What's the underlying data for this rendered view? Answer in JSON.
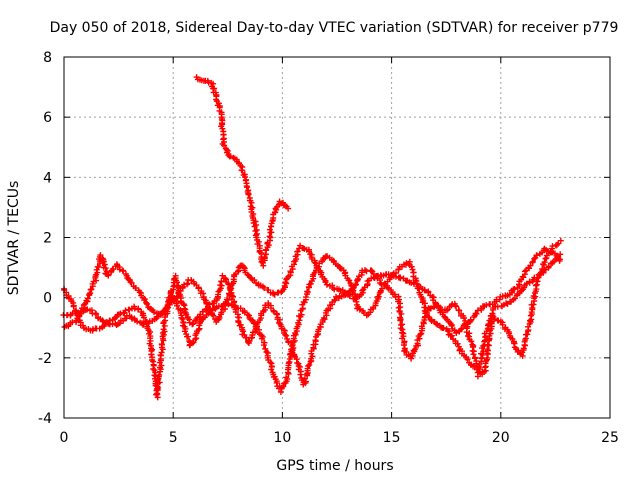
{
  "chart_data": {
    "type": "scatter",
    "title": "Day 050 of 2018, Sidereal Day-to-day VTEC variation (SDTVAR) for receiver p779",
    "xlabel": "GPS time / hours",
    "ylabel": "SDTVAR / TECUs",
    "xlim": [
      0,
      25
    ],
    "ylim": [
      -4,
      8
    ],
    "xticks": [
      "0",
      "5",
      "10",
      "15",
      "20",
      "25"
    ],
    "yticks": [
      "-4",
      "-2",
      "0",
      "2",
      "4",
      "6",
      "8"
    ],
    "grid": true,
    "marker": "plus",
    "series": [
      {
        "name": "p779",
        "color": "#ff0000",
        "segments": [
          [
            [
              0.0,
              0.3
            ],
            [
              0.4,
              -0.2
            ],
            [
              0.8,
              -0.9
            ],
            [
              1.2,
              -1.1
            ],
            [
              1.7,
              -1.0
            ],
            [
              2.2,
              -0.7
            ],
            [
              2.7,
              -0.5
            ],
            [
              3.2,
              -0.3
            ],
            [
              3.6,
              -0.5
            ],
            [
              3.9,
              -1.1
            ],
            [
              4.1,
              -2.2
            ],
            [
              4.25,
              -3.3
            ],
            [
              4.4,
              -2.4
            ],
            [
              4.6,
              -0.8
            ],
            [
              4.9,
              0.2
            ],
            [
              5.3,
              -0.4
            ],
            [
              5.6,
              -1.2
            ],
            [
              5.8,
              -1.6
            ],
            [
              6.0,
              -1.4
            ],
            [
              6.3,
              -0.8
            ],
            [
              6.7,
              -0.4
            ],
            [
              7.1,
              -0.3
            ],
            [
              7.5,
              -0.2
            ],
            [
              7.9,
              -0.3
            ],
            [
              8.3,
              -0.5
            ],
            [
              8.7,
              -0.8
            ],
            [
              9.0,
              -1.2
            ],
            [
              9.3,
              -1.8
            ],
            [
              9.6,
              -2.6
            ],
            [
              9.9,
              -3.1
            ],
            [
              10.2,
              -2.7
            ],
            [
              10.5,
              -1.5
            ],
            [
              10.8,
              -0.6
            ],
            [
              11.2,
              0.3
            ],
            [
              11.6,
              1.0
            ],
            [
              12.0,
              1.4
            ],
            [
              12.4,
              1.2
            ],
            [
              12.8,
              0.9
            ],
            [
              13.2,
              0.3
            ],
            [
              13.5,
              -0.4
            ],
            [
              13.9,
              -0.6
            ],
            [
              14.3,
              -0.2
            ],
            [
              14.6,
              0.4
            ],
            [
              15.0,
              0.7
            ],
            [
              15.4,
              1.0
            ],
            [
              15.8,
              1.2
            ],
            [
              16.2,
              0.4
            ],
            [
              16.6,
              -0.5
            ],
            [
              17.0,
              -0.9
            ],
            [
              17.4,
              -1.0
            ],
            [
              17.8,
              -1.3
            ],
            [
              18.2,
              -1.8
            ],
            [
              18.6,
              -2.2
            ],
            [
              19.0,
              -2.4
            ],
            [
              19.3,
              -1.2
            ],
            [
              19.7,
              -0.3
            ],
            [
              20.1,
              -0.3
            ],
            [
              20.5,
              -0.1
            ],
            [
              21.0,
              0.3
            ],
            [
              21.5,
              0.6
            ],
            [
              22.0,
              0.9
            ],
            [
              22.4,
              1.2
            ],
            [
              22.8,
              1.5
            ]
          ],
          [
            [
              0.0,
              -1.0
            ],
            [
              0.5,
              -0.8
            ],
            [
              1.0,
              -0.2
            ],
            [
              1.4,
              0.5
            ],
            [
              1.7,
              1.4
            ],
            [
              2.0,
              0.7
            ],
            [
              2.4,
              1.1
            ],
            [
              2.8,
              0.8
            ],
            [
              3.2,
              0.4
            ],
            [
              3.6,
              0.0
            ],
            [
              4.0,
              -0.4
            ],
            [
              4.4,
              -0.6
            ],
            [
              4.8,
              -0.2
            ],
            [
              5.1,
              0.7
            ],
            [
              5.3,
              0.1
            ],
            [
              5.6,
              -0.6
            ],
            [
              5.9,
              -0.9
            ],
            [
              6.2,
              -0.6
            ],
            [
              6.6,
              -0.3
            ],
            [
              7.0,
              -0.1
            ],
            [
              7.3,
              0.7
            ],
            [
              7.6,
              0.3
            ],
            [
              7.9,
              -0.5
            ],
            [
              8.2,
              -1.2
            ],
            [
              8.5,
              -1.5
            ],
            [
              8.9,
              -0.8
            ],
            [
              9.3,
              -0.2
            ],
            [
              9.7,
              -0.5
            ],
            [
              10.0,
              -1.0
            ],
            [
              10.4,
              -1.6
            ],
            [
              10.8,
              -2.4
            ],
            [
              11.0,
              -2.9
            ],
            [
              11.3,
              -2.0
            ],
            [
              11.7,
              -1.0
            ],
            [
              12.1,
              -0.4
            ],
            [
              12.5,
              0.0
            ],
            [
              12.9,
              0.1
            ],
            [
              13.3,
              0.4
            ],
            [
              13.7,
              0.9
            ],
            [
              14.1,
              0.9
            ],
            [
              14.5,
              0.5
            ],
            [
              14.9,
              0.3
            ],
            [
              15.3,
              0.0
            ],
            [
              15.6,
              -1.8
            ],
            [
              15.9,
              -2.0
            ],
            [
              16.2,
              -1.5
            ],
            [
              16.6,
              -0.4
            ],
            [
              17.0,
              -0.3
            ],
            [
              17.5,
              -0.4
            ],
            [
              17.9,
              -0.2
            ],
            [
              18.3,
              -0.7
            ],
            [
              18.7,
              -1.6
            ],
            [
              19.0,
              -2.6
            ],
            [
              19.3,
              -2.4
            ],
            [
              19.6,
              -0.6
            ],
            [
              20.0,
              -0.8
            ],
            [
              20.4,
              -1.2
            ],
            [
              20.8,
              -1.8
            ],
            [
              21.0,
              -1.9
            ],
            [
              21.3,
              -0.9
            ],
            [
              21.6,
              0.3
            ],
            [
              22.0,
              1.2
            ],
            [
              22.4,
              1.7
            ],
            [
              22.8,
              1.9
            ]
          ],
          [
            [
              0.0,
              -0.6
            ],
            [
              0.6,
              -0.5
            ],
            [
              1.2,
              -0.4
            ],
            [
              1.8,
              -0.8
            ],
            [
              2.4,
              -0.9
            ],
            [
              3.0,
              -0.6
            ],
            [
              3.6,
              -0.9
            ],
            [
              4.2,
              -0.7
            ],
            [
              4.8,
              -0.3
            ],
            [
              5.4,
              0.3
            ],
            [
              5.8,
              0.6
            ],
            [
              6.2,
              0.3
            ],
            [
              6.6,
              -0.3
            ],
            [
              7.0,
              -0.8
            ],
            [
              7.4,
              -0.3
            ],
            [
              7.8,
              0.7
            ],
            [
              8.1,
              1.1
            ],
            [
              8.4,
              0.8
            ],
            [
              8.8,
              0.5
            ],
            [
              9.2,
              0.3
            ],
            [
              9.6,
              0.1
            ],
            [
              10.0,
              0.2
            ],
            [
              10.4,
              0.9
            ],
            [
              10.8,
              1.7
            ],
            [
              11.2,
              1.6
            ],
            [
              11.6,
              1.0
            ],
            [
              12.0,
              0.5
            ],
            [
              12.4,
              0.3
            ],
            [
              12.8,
              0.2
            ],
            [
              13.2,
              0.0
            ],
            [
              13.6,
              0.1
            ],
            [
              14.0,
              0.6
            ],
            [
              14.4,
              0.7
            ],
            [
              14.8,
              0.8
            ],
            [
              15.2,
              0.7
            ],
            [
              15.6,
              0.6
            ],
            [
              16.0,
              0.5
            ],
            [
              16.4,
              0.3
            ],
            [
              16.8,
              0.1
            ],
            [
              17.2,
              -0.4
            ],
            [
              17.6,
              -0.8
            ],
            [
              18.0,
              -1.2
            ],
            [
              18.4,
              -0.9
            ],
            [
              18.8,
              -0.6
            ],
            [
              19.2,
              -0.3
            ],
            [
              19.6,
              -0.2
            ],
            [
              20.0,
              0.0
            ],
            [
              20.4,
              0.1
            ],
            [
              20.8,
              0.4
            ],
            [
              21.2,
              0.9
            ],
            [
              21.6,
              1.4
            ],
            [
              22.0,
              1.6
            ],
            [
              22.4,
              1.5
            ],
            [
              22.8,
              1.2
            ]
          ],
          [
            [
              6.1,
              7.3
            ],
            [
              6.5,
              7.2
            ],
            [
              6.8,
              7.1
            ],
            [
              7.0,
              6.6
            ],
            [
              7.2,
              6.1
            ],
            [
              7.3,
              5.1
            ],
            [
              7.5,
              4.8
            ],
            [
              7.8,
              4.6
            ],
            [
              8.1,
              4.4
            ],
            [
              8.3,
              4.0
            ],
            [
              8.5,
              3.4
            ],
            [
              8.7,
              2.6
            ],
            [
              8.9,
              1.8
            ],
            [
              9.1,
              1.1
            ],
            [
              9.3,
              1.6
            ],
            [
              9.5,
              2.4
            ],
            [
              9.7,
              3.0
            ],
            [
              9.9,
              3.2
            ],
            [
              10.1,
              3.1
            ],
            [
              10.3,
              2.9
            ]
          ]
        ]
      }
    ]
  }
}
